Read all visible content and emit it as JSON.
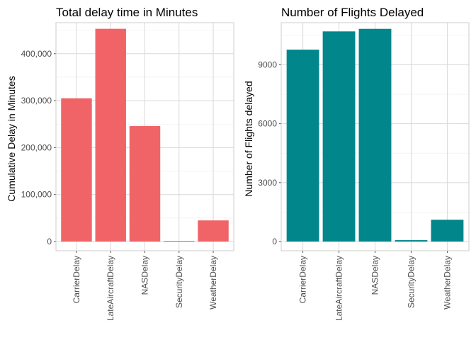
{
  "chart_data": [
    {
      "type": "bar",
      "title": "Total delay time in Minutes",
      "xlabel": "",
      "ylabel": "Cumulative Delay in Minutes",
      "categories": [
        "CarrierDelay",
        "LateAircraftDelay",
        "NASDelay",
        "SecurityDelay",
        "WeatherDelay"
      ],
      "values": [
        305000,
        453000,
        246000,
        1500,
        45000
      ],
      "ylim": [
        0,
        460000
      ],
      "yticks": [
        0,
        100000,
        200000,
        300000,
        400000
      ],
      "ytick_labels": [
        "0",
        "100,000",
        "200,000",
        "300,000",
        "400,000"
      ],
      "bar_color": "#F06468",
      "grid": true
    },
    {
      "type": "bar",
      "title": "Number of Flights Delayed",
      "xlabel": "",
      "ylabel": "Number of Flights delayed",
      "categories": [
        "CarrierDelay",
        "LateAircraftDelay",
        "NASDelay",
        "SecurityDelay",
        "WeatherDelay"
      ],
      "values": [
        9770,
        10700,
        10830,
        70,
        1110
      ],
      "ylim": [
        0,
        11000
      ],
      "yticks": [
        0,
        3000,
        6000,
        9000
      ],
      "ytick_labels": [
        "0",
        "3000",
        "6000",
        "9000"
      ],
      "bar_color": "#00868B",
      "grid": true
    }
  ]
}
